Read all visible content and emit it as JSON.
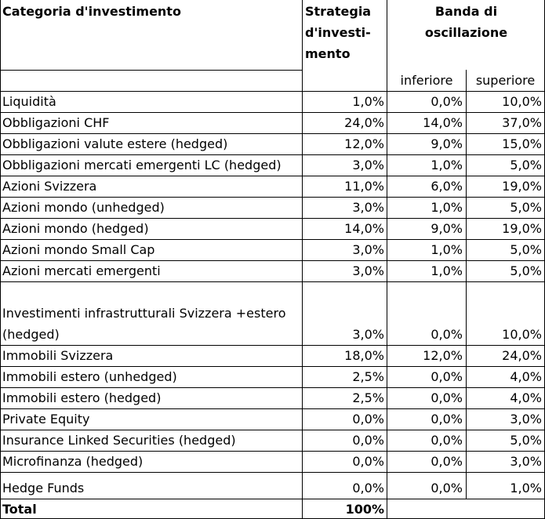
{
  "header": {
    "category": "Categoria d'investimento",
    "strategy_lines": [
      "Strategia",
      "d'investi-",
      "mento"
    ],
    "band_lines": [
      "Banda di",
      "oscillazione"
    ],
    "lower": "inferiore",
    "upper": "superiore"
  },
  "rows": [
    {
      "category": "Liquidità",
      "strategy": "1,0%",
      "lower": "0,0%",
      "upper": "10,0%"
    },
    {
      "category": "Obbligazioni CHF",
      "strategy": "24,0%",
      "lower": "14,0%",
      "upper": "37,0%"
    },
    {
      "category": "Obbligazioni valute estere (hedged)",
      "strategy": "12,0%",
      "lower": "9,0%",
      "upper": "15,0%"
    },
    {
      "category": "Obbligazioni mercati emergenti LC (hedged)",
      "strategy": "3,0%",
      "lower": "1,0%",
      "upper": "5,0%"
    },
    {
      "category": "Azioni Svizzera",
      "strategy": "11,0%",
      "lower": "6,0%",
      "upper": "19,0%"
    },
    {
      "category": "Azioni mondo (unhedged)",
      "strategy": "3,0%",
      "lower": "1,0%",
      "upper": "5,0%"
    },
    {
      "category": "Azioni mondo (hedged)",
      "strategy": "14,0%",
      "lower": "9,0%",
      "upper": "19,0%"
    },
    {
      "category": "Azioni mondo Small Cap",
      "strategy": "3,0%",
      "lower": "1,0%",
      "upper": "5,0%"
    },
    {
      "category": "Azioni mercati emergenti",
      "strategy": "3,0%",
      "lower": "1,0%",
      "upper": "5,0%"
    },
    {
      "category_lines": [
        "Investimenti infrastrutturali Svizzera +estero",
        "(hedged)"
      ],
      "strategy": "3,0%",
      "lower": "0,0%",
      "upper": "10,0%"
    },
    {
      "category": "Immobili Svizzera",
      "strategy": "18,0%",
      "lower": "12,0%",
      "upper": "24,0%"
    },
    {
      "category": "Immobili estero (unhedged)",
      "strategy": "2,5%",
      "lower": "0,0%",
      "upper": "4,0%"
    },
    {
      "category": "Immobili estero (hedged)",
      "strategy": "2,5%",
      "lower": "0,0%",
      "upper": "4,0%"
    },
    {
      "category": "Private Equity",
      "strategy": "0,0%",
      "lower": "0,0%",
      "upper": "3,0%"
    },
    {
      "category": "Insurance Linked Securities (hedged)",
      "strategy": "0,0%",
      "lower": "0,0%",
      "upper": "5,0%"
    },
    {
      "category": "Microfinanza (hedged)",
      "strategy": "0,0%",
      "lower": "0,0%",
      "upper": "3,0%"
    },
    {
      "category": "Hedge Funds",
      "strategy": "0,0%",
      "lower": "0,0%",
      "upper": "1,0%"
    }
  ],
  "total": {
    "label": "Total",
    "strategy": "100%"
  }
}
